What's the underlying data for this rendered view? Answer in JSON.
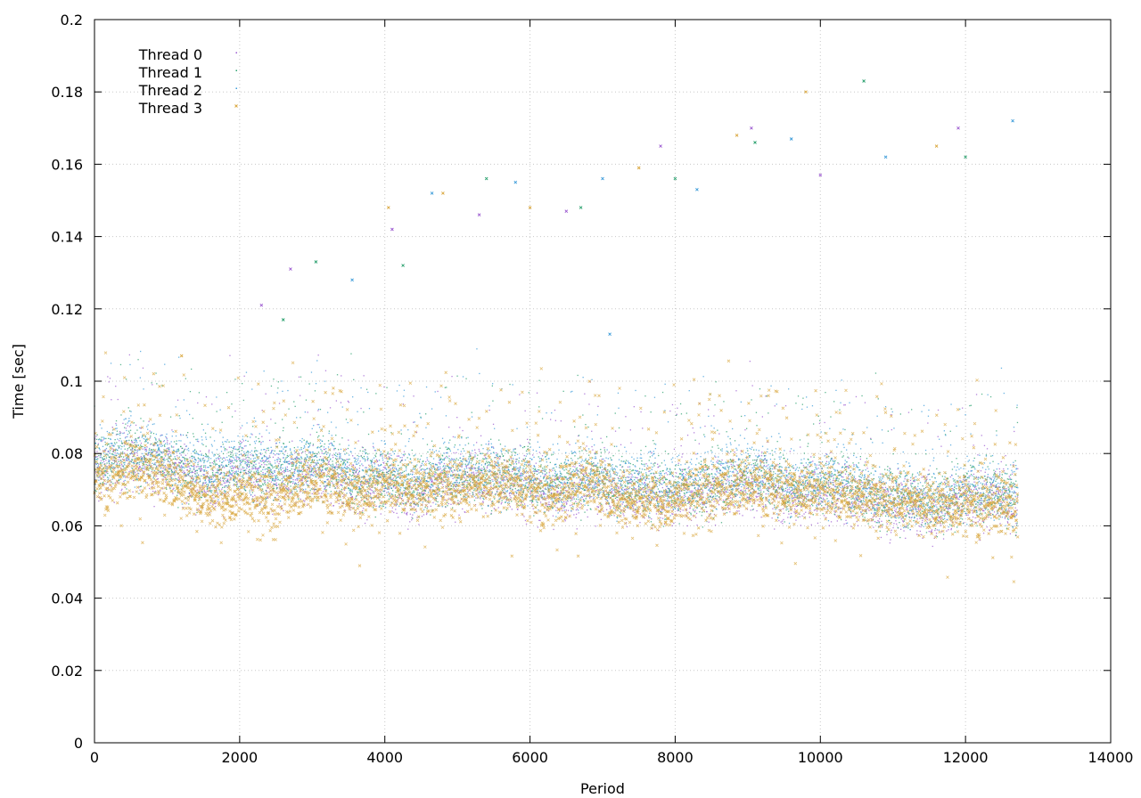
{
  "chart_data": {
    "type": "scatter",
    "title": "",
    "xlabel": "Period",
    "ylabel": "Time [sec]",
    "xlim": [
      0,
      14000
    ],
    "ylim": [
      0,
      0.2
    ],
    "x_ticks": [
      0,
      2000,
      4000,
      6000,
      8000,
      10000,
      12000,
      14000
    ],
    "y_ticks": [
      0,
      0.02,
      0.04,
      0.06,
      0.08,
      0.1,
      0.12,
      0.14,
      0.16,
      0.18,
      0.2
    ],
    "x_tick_labels": [
      "0",
      "2000",
      "4000",
      "6000",
      "8000",
      "10000",
      "12000",
      "14000"
    ],
    "y_tick_labels": [
      "0",
      "0.02",
      "0.04",
      "0.06",
      "0.08",
      "0.1",
      "0.12",
      "0.14",
      "0.16",
      "0.18",
      "0.2"
    ],
    "grid": true,
    "legend_position": "top-left",
    "series": [
      {
        "name": "Thread 0",
        "color": "#9b59d0",
        "marker": "dot",
        "x": [
          50,
          400,
          800,
          1200,
          1600,
          2000,
          2400,
          2800,
          3200,
          3600,
          4000,
          4400,
          4800,
          5200,
          5600,
          6000,
          6400,
          6800,
          7200,
          7600,
          8000,
          8400,
          8800,
          9200,
          9600,
          10000,
          10400,
          10800,
          11200,
          11600,
          12000,
          12400,
          12700
        ],
        "y": [
          0.076,
          0.079,
          0.078,
          0.075,
          0.072,
          0.075,
          0.073,
          0.074,
          0.075,
          0.071,
          0.073,
          0.068,
          0.072,
          0.072,
          0.072,
          0.071,
          0.068,
          0.072,
          0.069,
          0.069,
          0.068,
          0.069,
          0.071,
          0.072,
          0.068,
          0.07,
          0.069,
          0.066,
          0.066,
          0.064,
          0.067,
          0.067,
          0.066
        ]
      },
      {
        "name": "Thread 1",
        "color": "#2aa06e",
        "marker": "dot",
        "x": [
          50,
          400,
          800,
          1200,
          1600,
          2000,
          2400,
          2800,
          3200,
          3600,
          4000,
          4400,
          4800,
          5200,
          5600,
          6000,
          6400,
          6800,
          7200,
          7600,
          8000,
          8400,
          8800,
          9200,
          9600,
          10000,
          10400,
          10800,
          11200,
          11600,
          12000,
          12400,
          12700
        ],
        "y": [
          0.077,
          0.08,
          0.079,
          0.076,
          0.074,
          0.077,
          0.075,
          0.076,
          0.077,
          0.073,
          0.074,
          0.071,
          0.074,
          0.074,
          0.074,
          0.073,
          0.071,
          0.073,
          0.071,
          0.071,
          0.07,
          0.071,
          0.073,
          0.074,
          0.07,
          0.072,
          0.071,
          0.068,
          0.068,
          0.066,
          0.069,
          0.069,
          0.068
        ]
      },
      {
        "name": "Thread 2",
        "color": "#3a9bd9",
        "marker": "dot",
        "x": [
          50,
          400,
          800,
          1200,
          1600,
          2000,
          2400,
          2800,
          3200,
          3600,
          4000,
          4400,
          4800,
          5200,
          5600,
          6000,
          6400,
          6800,
          7200,
          7600,
          8000,
          8400,
          8800,
          9200,
          9600,
          10000,
          10400,
          10800,
          11200,
          11600,
          12000,
          12400,
          12700
        ],
        "y": [
          0.078,
          0.081,
          0.08,
          0.077,
          0.075,
          0.078,
          0.076,
          0.077,
          0.078,
          0.074,
          0.075,
          0.072,
          0.075,
          0.075,
          0.075,
          0.074,
          0.072,
          0.074,
          0.072,
          0.072,
          0.071,
          0.072,
          0.074,
          0.075,
          0.071,
          0.073,
          0.072,
          0.069,
          0.069,
          0.067,
          0.07,
          0.07,
          0.069
        ]
      },
      {
        "name": "Thread 3",
        "color": "#d9a53a",
        "marker": "cross",
        "x": [
          50,
          400,
          800,
          1200,
          1600,
          2000,
          2400,
          2800,
          3200,
          3600,
          4000,
          4400,
          4800,
          5200,
          5600,
          6000,
          6400,
          6800,
          7200,
          7600,
          8000,
          8400,
          8800,
          9200,
          9600,
          10000,
          10400,
          10800,
          11200,
          11600,
          12000,
          12400,
          12700
        ],
        "y": [
          0.073,
          0.075,
          0.075,
          0.072,
          0.067,
          0.07,
          0.066,
          0.071,
          0.072,
          0.068,
          0.072,
          0.07,
          0.071,
          0.071,
          0.072,
          0.07,
          0.068,
          0.073,
          0.068,
          0.067,
          0.068,
          0.069,
          0.071,
          0.071,
          0.069,
          0.07,
          0.068,
          0.068,
          0.067,
          0.065,
          0.066,
          0.066,
          0.064
        ]
      }
    ],
    "outliers": [
      {
        "x": 2700,
        "y": 0.131
      },
      {
        "x": 3050,
        "y": 0.133
      },
      {
        "x": 3550,
        "y": 0.128
      },
      {
        "x": 4050,
        "y": 0.148
      },
      {
        "x": 4100,
        "y": 0.142
      },
      {
        "x": 4250,
        "y": 0.132
      },
      {
        "x": 4650,
        "y": 0.152
      },
      {
        "x": 4800,
        "y": 0.152
      },
      {
        "x": 5300,
        "y": 0.146
      },
      {
        "x": 5400,
        "y": 0.156
      },
      {
        "x": 5800,
        "y": 0.155
      },
      {
        "x": 6000,
        "y": 0.148
      },
      {
        "x": 6500,
        "y": 0.147
      },
      {
        "x": 6700,
        "y": 0.148
      },
      {
        "x": 7000,
        "y": 0.156
      },
      {
        "x": 7500,
        "y": 0.159
      },
      {
        "x": 7800,
        "y": 0.165
      },
      {
        "x": 8000,
        "y": 0.156
      },
      {
        "x": 8300,
        "y": 0.153
      },
      {
        "x": 8850,
        "y": 0.168
      },
      {
        "x": 9050,
        "y": 0.17
      },
      {
        "x": 9100,
        "y": 0.166
      },
      {
        "x": 9600,
        "y": 0.167
      },
      {
        "x": 9800,
        "y": 0.18
      },
      {
        "x": 10000,
        "y": 0.157
      },
      {
        "x": 10600,
        "y": 0.183
      },
      {
        "x": 10900,
        "y": 0.162
      },
      {
        "x": 11600,
        "y": 0.165
      },
      {
        "x": 11900,
        "y": 0.17
      },
      {
        "x": 12000,
        "y": 0.162
      },
      {
        "x": 12650,
        "y": 0.172
      },
      {
        "x": 1200,
        "y": 0.107
      },
      {
        "x": 2300,
        "y": 0.121
      },
      {
        "x": 2600,
        "y": 0.117
      },
      {
        "x": 7100,
        "y": 0.113
      }
    ]
  }
}
